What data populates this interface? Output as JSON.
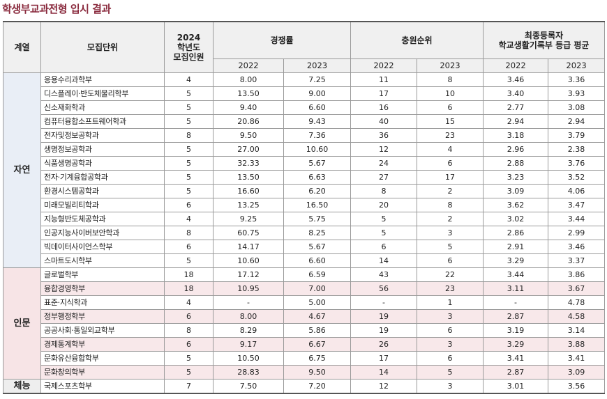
{
  "title": "학생부교과전형 입시 결과",
  "headers": {
    "field": "계열",
    "unit": "모집단위",
    "quota_line1": "2024",
    "quota_line2": "학년도",
    "quota_line3": "모집인원",
    "competition": "경쟁률",
    "waitlist": "충원순위",
    "grade_line1": "최종등록자",
    "grade_line2": "학교생활기록부 등급 평균",
    "y2022": "2022",
    "y2023": "2023"
  },
  "groups": [
    {
      "name": "자연",
      "rows": [
        {
          "unit": "응용수리과학부",
          "quota": "4",
          "comp2022": "8.00",
          "comp2023": "7.25",
          "wait2022": "11",
          "wait2023": "8",
          "grade2022": "3.46",
          "grade2023": "3.36"
        },
        {
          "unit": "디스플레이·반도체물리학부",
          "quota": "5",
          "comp2022": "13.50",
          "comp2023": "9.00",
          "wait2022": "17",
          "wait2023": "10",
          "grade2022": "3.40",
          "grade2023": "3.93"
        },
        {
          "unit": "신소재화학과",
          "quota": "5",
          "comp2022": "9.40",
          "comp2023": "6.60",
          "wait2022": "16",
          "wait2023": "6",
          "grade2022": "2.77",
          "grade2023": "3.08"
        },
        {
          "unit": "컴퓨터융합소프트웨어학과",
          "quota": "5",
          "comp2022": "20.86",
          "comp2023": "9.43",
          "wait2022": "40",
          "wait2023": "15",
          "grade2022": "2.94",
          "grade2023": "2.94"
        },
        {
          "unit": "전자및정보공학과",
          "quota": "8",
          "comp2022": "9.50",
          "comp2023": "7.36",
          "wait2022": "36",
          "wait2023": "23",
          "grade2022": "3.18",
          "grade2023": "3.79"
        },
        {
          "unit": "생명정보공학과",
          "quota": "5",
          "comp2022": "27.00",
          "comp2023": "10.60",
          "wait2022": "12",
          "wait2023": "4",
          "grade2022": "2.96",
          "grade2023": "2.38"
        },
        {
          "unit": "식품생명공학과",
          "quota": "5",
          "comp2022": "32.33",
          "comp2023": "5.67",
          "wait2022": "24",
          "wait2023": "6",
          "grade2022": "2.88",
          "grade2023": "3.76"
        },
        {
          "unit": "전자·기계융합공학과",
          "quota": "5",
          "comp2022": "13.50",
          "comp2023": "6.63",
          "wait2022": "27",
          "wait2023": "17",
          "grade2022": "3.23",
          "grade2023": "3.52"
        },
        {
          "unit": "환경시스템공학과",
          "quota": "5",
          "comp2022": "16.60",
          "comp2023": "6.20",
          "wait2022": "8",
          "wait2023": "2",
          "grade2022": "3.09",
          "grade2023": "4.06"
        },
        {
          "unit": "미래모빌리티학과",
          "quota": "6",
          "comp2022": "13.25",
          "comp2023": "16.50",
          "wait2022": "20",
          "wait2023": "8",
          "grade2022": "3.62",
          "grade2023": "3.47"
        },
        {
          "unit": "지능형반도체공학과",
          "quota": "4",
          "comp2022": "9.25",
          "comp2023": "5.75",
          "wait2022": "5",
          "wait2023": "2",
          "grade2022": "3.02",
          "grade2023": "3.44"
        },
        {
          "unit": "인공지능사이버보안학과",
          "quota": "8",
          "comp2022": "60.75",
          "comp2023": "8.25",
          "wait2022": "5",
          "wait2023": "3",
          "grade2022": "2.86",
          "grade2023": "2.99"
        },
        {
          "unit": "빅데이터사이언스학부",
          "quota": "6",
          "comp2022": "14.17",
          "comp2023": "5.67",
          "wait2022": "6",
          "wait2023": "5",
          "grade2022": "2.91",
          "grade2023": "3.46"
        },
        {
          "unit": "스마트도시학부",
          "quota": "5",
          "comp2022": "10.60",
          "comp2023": "6.60",
          "wait2022": "14",
          "wait2023": "6",
          "grade2022": "3.29",
          "grade2023": "3.37"
        }
      ]
    },
    {
      "name": "인문",
      "rows": [
        {
          "unit": "글로벌학부",
          "quota": "18",
          "comp2022": "17.12",
          "comp2023": "6.59",
          "wait2022": "43",
          "wait2023": "22",
          "grade2022": "3.44",
          "grade2023": "3.86"
        },
        {
          "unit": "융합경영학부",
          "quota": "18",
          "comp2022": "10.95",
          "comp2023": "7.00",
          "wait2022": "56",
          "wait2023": "23",
          "grade2022": "3.11",
          "grade2023": "3.67"
        },
        {
          "unit": "표준·지식학과",
          "quota": "4",
          "comp2022": "-",
          "comp2023": "5.00",
          "wait2022": "-",
          "wait2023": "1",
          "grade2022": "-",
          "grade2023": "4.78"
        },
        {
          "unit": "정부행정학부",
          "quota": "6",
          "comp2022": "8.00",
          "comp2023": "4.67",
          "wait2022": "19",
          "wait2023": "3",
          "grade2022": "2.87",
          "grade2023": "4.58"
        },
        {
          "unit": "공공사회·통일외교학부",
          "quota": "8",
          "comp2022": "8.29",
          "comp2023": "5.86",
          "wait2022": "19",
          "wait2023": "6",
          "grade2022": "3.19",
          "grade2023": "3.14"
        },
        {
          "unit": "경제통계학부",
          "quota": "6",
          "comp2022": "9.17",
          "comp2023": "6.67",
          "wait2022": "26",
          "wait2023": "3",
          "grade2022": "3.29",
          "grade2023": "3.88"
        },
        {
          "unit": "문화유산융합학부",
          "quota": "5",
          "comp2022": "10.50",
          "comp2023": "6.75",
          "wait2022": "17",
          "wait2023": "6",
          "grade2022": "3.41",
          "grade2023": "3.41"
        },
        {
          "unit": "문화창의학부",
          "quota": "5",
          "comp2022": "28.83",
          "comp2023": "9.50",
          "wait2022": "14",
          "wait2023": "5",
          "grade2022": "2.87",
          "grade2023": "3.09"
        }
      ]
    },
    {
      "name": "체능",
      "rows": [
        {
          "unit": "국제스포츠학부",
          "quota": "7",
          "comp2022": "7.50",
          "comp2023": "7.20",
          "wait2022": "12",
          "wait2023": "3",
          "grade2022": "3.01",
          "grade2023": "3.56"
        }
      ]
    }
  ]
}
